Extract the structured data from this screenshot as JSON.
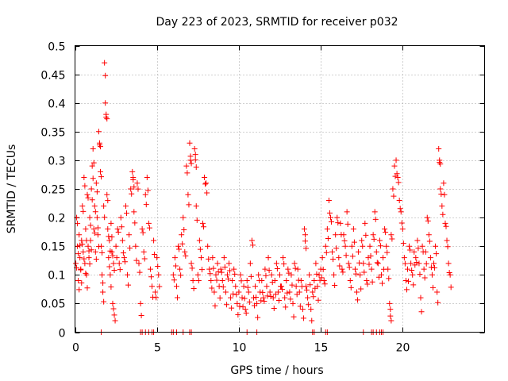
{
  "chart_data": {
    "type": "scatter",
    "title": "Day 223 of 2023, SRMTID for receiver p032",
    "xlabel": "GPS time / hours",
    "ylabel": "SRMTID / TECUs",
    "xlim": [
      0,
      25
    ],
    "ylim": [
      0,
      0.5
    ],
    "x_ticks": [
      0,
      5,
      10,
      15,
      20
    ],
    "x_tick_labels": [
      "0",
      "5",
      "10",
      "15",
      "20"
    ],
    "y_ticks": [
      0,
      0.05,
      0.1,
      0.15,
      0.2,
      0.25,
      0.3,
      0.35,
      0.4,
      0.45,
      0.5
    ],
    "y_tick_labels": [
      "0",
      "0.05",
      "0.1",
      "0.15",
      "0.2",
      "0.25",
      "0.3",
      "0.35",
      "0.4",
      "0.45",
      "0.5"
    ],
    "grid": true,
    "marker": "+",
    "color": "#ff0000",
    "series": [
      {
        "name": "SRMTID",
        "points": [
          [
            0.05,
            0.12
          ],
          [
            0.1,
            0.2
          ],
          [
            0.15,
            0.15
          ],
          [
            0.2,
            0.09
          ],
          [
            0.25,
            0.17
          ],
          [
            0.3,
            0.13
          ],
          [
            0.35,
            0.11
          ],
          [
            0.4,
            0.16
          ],
          [
            0.45,
            0.22
          ],
          [
            0.5,
            0.14
          ],
          [
            0.55,
            0.27
          ],
          [
            0.6,
            0.12
          ],
          [
            0.65,
            0.18
          ],
          [
            0.7,
            0.1
          ],
          [
            0.75,
            0.24
          ],
          [
            0.8,
            0.15
          ],
          [
            0.85,
            0.13
          ],
          [
            0.9,
            0.2
          ],
          [
            0.95,
            0.16
          ],
          [
            1.0,
            0.25
          ],
          [
            1.05,
            0.29
          ],
          [
            1.1,
            0.32
          ],
          [
            1.15,
            0.18
          ],
          [
            1.2,
            0.22
          ],
          [
            1.25,
            0.14
          ],
          [
            1.3,
            0.26
          ],
          [
            1.35,
            0.2
          ],
          [
            1.4,
            0.17
          ],
          [
            1.45,
            0.35
          ],
          [
            1.5,
            0.33
          ],
          [
            1.55,
            0.28
          ],
          [
            1.6,
            0.15
          ],
          [
            1.65,
            0.1
          ],
          [
            1.7,
            0.07
          ],
          [
            1.75,
            0.22
          ],
          [
            1.8,
            0.47
          ],
          [
            1.85,
            0.4
          ],
          [
            1.9,
            0.38
          ],
          [
            1.95,
            0.24
          ],
          [
            2.0,
            0.18
          ],
          [
            2.05,
            0.13
          ],
          [
            2.1,
            0.16
          ],
          [
            2.15,
            0.1
          ],
          [
            2.2,
            0.19
          ],
          [
            2.25,
            0.14
          ],
          [
            2.3,
            0.05
          ],
          [
            2.35,
            0.12
          ],
          [
            2.4,
            0.03
          ],
          [
            2.5,
            0.15
          ],
          [
            2.6,
            0.18
          ],
          [
            2.7,
            0.12
          ],
          [
            2.8,
            0.2
          ],
          [
            2.9,
            0.16
          ],
          [
            3.0,
            0.13
          ],
          [
            3.1,
            0.22
          ],
          [
            3.2,
            0.1
          ],
          [
            3.3,
            0.17
          ],
          [
            3.4,
            0.25
          ],
          [
            3.5,
            0.28
          ],
          [
            3.55,
            0.27
          ],
          [
            3.6,
            0.21
          ],
          [
            3.7,
            0.15
          ],
          [
            3.8,
            0.26
          ],
          [
            3.9,
            0.12
          ],
          [
            4.0,
            0.05
          ],
          [
            4.1,
            0.18
          ],
          [
            4.2,
            0.14
          ],
          [
            4.3,
            0.24
          ],
          [
            4.4,
            0.27
          ],
          [
            4.5,
            0.19
          ],
          [
            4.6,
            0.11
          ],
          [
            4.7,
            0.08
          ],
          [
            4.8,
            0.16
          ],
          [
            4.9,
            0.07
          ],
          [
            5.0,
            0.13
          ],
          [
            5.1,
            0.1
          ],
          [
            6.0,
            0.1
          ],
          [
            6.1,
            0.13
          ],
          [
            6.2,
            0.08
          ],
          [
            6.3,
            0.15
          ],
          [
            6.4,
            0.11
          ],
          [
            6.5,
            0.17
          ],
          [
            6.6,
            0.2
          ],
          [
            6.7,
            0.14
          ],
          [
            6.8,
            0.29
          ],
          [
            6.9,
            0.24
          ],
          [
            7.0,
            0.33
          ],
          [
            7.05,
            0.3
          ],
          [
            7.1,
            0.12
          ],
          [
            7.2,
            0.09
          ],
          [
            7.3,
            0.32
          ],
          [
            7.35,
            0.31
          ],
          [
            7.4,
            0.22
          ],
          [
            7.5,
            0.1
          ],
          [
            7.6,
            0.16
          ],
          [
            7.7,
            0.13
          ],
          [
            7.8,
            0.19
          ],
          [
            7.9,
            0.27
          ],
          [
            8.0,
            0.26
          ],
          [
            8.1,
            0.15
          ],
          [
            8.2,
            0.11
          ],
          [
            8.3,
            0.09
          ],
          [
            8.4,
            0.13
          ],
          [
            8.5,
            0.07
          ],
          [
            8.6,
            0.1
          ],
          [
            8.7,
            0.12
          ],
          [
            8.8,
            0.08
          ],
          [
            8.9,
            0.11
          ],
          [
            9.0,
            0.09
          ],
          [
            9.1,
            0.13
          ],
          [
            9.2,
            0.07
          ],
          [
            9.3,
            0.1
          ],
          [
            9.4,
            0.12
          ],
          [
            9.5,
            0.06
          ],
          [
            9.6,
            0.09
          ],
          [
            9.7,
            0.11
          ],
          [
            9.8,
            0.08
          ],
          [
            9.9,
            0.05
          ],
          [
            10.0,
            0.07
          ],
          [
            10.1,
            0.1
          ],
          [
            10.2,
            0.06
          ],
          [
            10.3,
            0.08
          ],
          [
            10.4,
            0.04
          ],
          [
            10.5,
            0.09
          ],
          [
            10.6,
            0.07
          ],
          [
            10.7,
            0.12
          ],
          [
            10.8,
            0.16
          ],
          [
            10.9,
            0.06
          ],
          [
            11.0,
            0.08
          ],
          [
            11.1,
            0.05
          ],
          [
            11.2,
            0.1
          ],
          [
            11.3,
            0.07
          ],
          [
            11.4,
            0.09
          ],
          [
            11.5,
            0.06
          ],
          [
            11.6,
            0.11
          ],
          [
            11.7,
            0.08
          ],
          [
            11.8,
            0.13
          ],
          [
            11.9,
            0.07
          ],
          [
            12.0,
            0.1
          ],
          [
            12.1,
            0.06
          ],
          [
            12.2,
            0.09
          ],
          [
            12.3,
            0.12
          ],
          [
            12.4,
            0.07
          ],
          [
            12.5,
            0.1
          ],
          [
            12.6,
            0.08
          ],
          [
            12.7,
            0.13
          ],
          [
            12.8,
            0.06
          ],
          [
            12.9,
            0.09
          ],
          [
            13.0,
            0.11
          ],
          [
            13.1,
            0.07
          ],
          [
            13.2,
            0.1
          ],
          [
            13.3,
            0.05
          ],
          [
            13.4,
            0.12
          ],
          [
            13.5,
            0.08
          ],
          [
            13.6,
            0.11
          ],
          [
            13.7,
            0.07
          ],
          [
            13.8,
            0.09
          ],
          [
            13.9,
            0.04
          ],
          [
            14.0,
            0.18
          ],
          [
            14.05,
            0.17
          ],
          [
            14.1,
            0.08
          ],
          [
            14.2,
            0.06
          ],
          [
            14.3,
            0.1
          ],
          [
            14.4,
            0.04
          ],
          [
            14.5,
            0.07
          ],
          [
            14.6,
            0.09
          ],
          [
            14.7,
            0.12
          ],
          [
            14.8,
            0.08
          ],
          [
            14.9,
            0.1
          ],
          [
            15.0,
            0.11
          ],
          [
            15.1,
            0.13
          ],
          [
            15.2,
            0.09
          ],
          [
            15.3,
            0.15
          ],
          [
            15.4,
            0.18
          ],
          [
            15.5,
            0.23
          ],
          [
            15.6,
            0.2
          ],
          [
            15.7,
            0.14
          ],
          [
            15.8,
            0.1
          ],
          [
            15.9,
            0.17
          ],
          [
            16.0,
            0.2
          ],
          [
            16.1,
            0.13
          ],
          [
            16.2,
            0.19
          ],
          [
            16.3,
            0.11
          ],
          [
            16.4,
            0.17
          ],
          [
            16.5,
            0.15
          ],
          [
            16.6,
            0.21
          ],
          [
            16.7,
            0.12
          ],
          [
            16.8,
            0.09
          ],
          [
            16.9,
            0.15
          ],
          [
            17.0,
            0.18
          ],
          [
            17.1,
            0.11
          ],
          [
            17.2,
            0.07
          ],
          [
            17.3,
            0.14
          ],
          [
            17.4,
            0.1
          ],
          [
            17.5,
            0.16
          ],
          [
            17.6,
            0.12
          ],
          [
            17.7,
            0.19
          ],
          [
            17.8,
            0.09
          ],
          [
            17.9,
            0.13
          ],
          [
            18.0,
            0.15
          ],
          [
            18.1,
            0.11
          ],
          [
            18.2,
            0.17
          ],
          [
            18.3,
            0.21
          ],
          [
            18.4,
            0.14
          ],
          [
            18.5,
            0.12
          ],
          [
            18.6,
            0.16
          ],
          [
            18.7,
            0.1
          ],
          [
            18.8,
            0.13
          ],
          [
            18.9,
            0.18
          ],
          [
            19.0,
            0.15
          ],
          [
            19.1,
            0.11
          ],
          [
            19.2,
            0.05
          ],
          [
            19.25,
            0.04
          ],
          [
            19.3,
            0.17
          ],
          [
            19.4,
            0.25
          ],
          [
            19.5,
            0.29
          ],
          [
            19.6,
            0.3
          ],
          [
            19.7,
            0.27
          ],
          [
            19.8,
            0.23
          ],
          [
            19.9,
            0.21
          ],
          [
            20.0,
            0.18
          ],
          [
            20.1,
            0.13
          ],
          [
            20.2,
            0.09
          ],
          [
            20.3,
            0.11
          ],
          [
            20.4,
            0.15
          ],
          [
            20.5,
            0.12
          ],
          [
            20.6,
            0.1
          ],
          [
            20.7,
            0.14
          ],
          [
            20.8,
            0.13
          ],
          [
            20.9,
            0.16
          ],
          [
            21.0,
            0.12
          ],
          [
            21.1,
            0.06
          ],
          [
            21.2,
            0.15
          ],
          [
            21.3,
            0.11
          ],
          [
            21.4,
            0.14
          ],
          [
            21.5,
            0.2
          ],
          [
            21.6,
            0.17
          ],
          [
            21.7,
            0.13
          ],
          [
            21.8,
            0.1
          ],
          [
            21.9,
            0.12
          ],
          [
            22.0,
            0.15
          ],
          [
            22.1,
            0.07
          ],
          [
            22.2,
            0.32
          ],
          [
            22.25,
            0.3
          ],
          [
            22.3,
            0.25
          ],
          [
            22.4,
            0.22
          ],
          [
            22.5,
            0.26
          ],
          [
            22.6,
            0.19
          ],
          [
            22.7,
            0.16
          ],
          [
            22.8,
            0.12
          ],
          [
            22.9,
            0.1
          ]
        ]
      }
    ],
    "zero_points_x": [
      1.6,
      4.0,
      4.1,
      4.3,
      4.5,
      4.7,
      4.8,
      5.9,
      6.0,
      6.2,
      6.6,
      7.0,
      7.1,
      10.5,
      11.1,
      14.5,
      14.6,
      15.3,
      15.4,
      17.6,
      18.1,
      18.2,
      18.4,
      18.6,
      18.7,
      18.8
    ]
  }
}
